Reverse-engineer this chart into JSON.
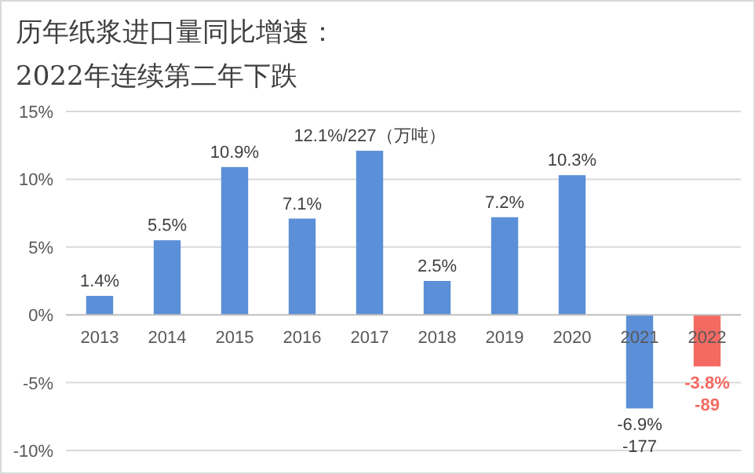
{
  "chart_data": {
    "type": "bar",
    "title": "历年纸浆进口量同比增速：\n2022年连续第二年下跌",
    "categories": [
      "2013",
      "2014",
      "2015",
      "2016",
      "2017",
      "2018",
      "2019",
      "2020",
      "2021",
      "2022"
    ],
    "values": [
      1.4,
      5.5,
      10.9,
      7.1,
      12.1,
      2.5,
      7.2,
      10.3,
      -6.9,
      -3.8
    ],
    "colors": [
      "#5b8fd8",
      "#5b8fd8",
      "#5b8fd8",
      "#5b8fd8",
      "#5b8fd8",
      "#5b8fd8",
      "#5b8fd8",
      "#5b8fd8",
      "#5b8fd8",
      "#f46a62"
    ],
    "value_labels": [
      "1.4%",
      "5.5%",
      "10.9%",
      "7.1%",
      "12.1%/227（万吨）",
      "2.5%",
      "7.2%",
      "10.3%",
      "-6.9%\n-177",
      "-3.8%\n-89"
    ],
    "ylim": [
      -10,
      15
    ],
    "yticks": [
      {
        "value": -10,
        "label": "-10%"
      },
      {
        "value": -5,
        "label": "-5%"
      },
      {
        "value": 0,
        "label": "0%"
      },
      {
        "value": 5,
        "label": "5%"
      },
      {
        "value": 10,
        "label": "10%"
      },
      {
        "value": 15,
        "label": "15%"
      }
    ],
    "grid": "y"
  }
}
